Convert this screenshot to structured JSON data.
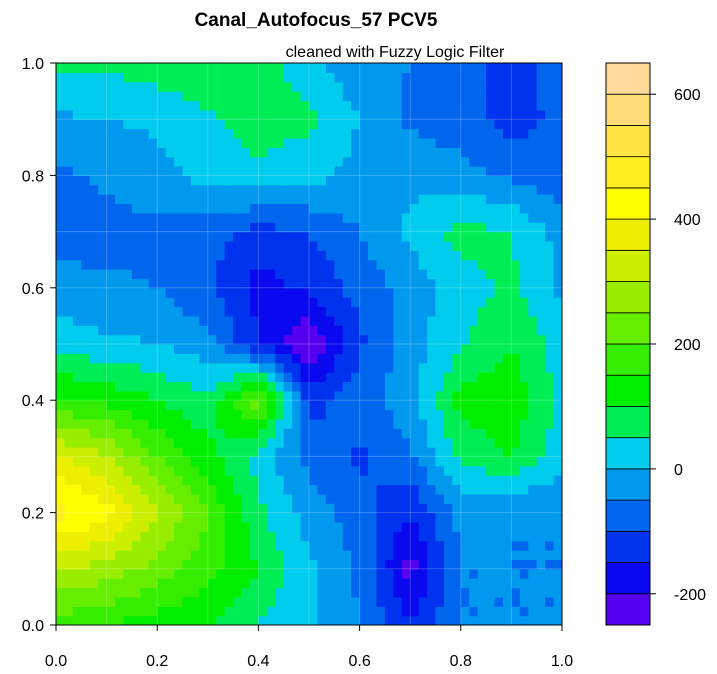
{
  "chart_data": {
    "type": "heatmap",
    "title": "Canal_Autofocus_57 PCV5",
    "subtitle": "cleaned with Fuzzy Logic Filter",
    "xlabel": "",
    "ylabel": "",
    "xlim": [
      0,
      1
    ],
    "ylim": [
      0,
      1
    ],
    "x_ticks": [
      "0.0",
      "0.2",
      "0.4",
      "0.6",
      "0.8",
      "1.0"
    ],
    "y_ticks": [
      "0.0",
      "0.2",
      "0.4",
      "0.6",
      "0.8",
      "1.0"
    ],
    "grid": true,
    "x": [
      0.0,
      0.1,
      0.2,
      0.3,
      0.4,
      0.5,
      0.6,
      0.7,
      0.8,
      0.9,
      1.0
    ],
    "y": [
      0.0,
      0.1,
      0.2,
      0.3,
      0.4,
      0.5,
      0.6,
      0.7,
      0.8,
      0.9,
      1.0
    ],
    "z": [
      [
        180,
        150,
        120,
        100,
        40,
        10,
        -50,
        -140,
        -50,
        -50,
        -50
      ],
      [
        300,
        280,
        230,
        170,
        100,
        10,
        -60,
        -220,
        -50,
        -50,
        -50
      ],
      [
        470,
        420,
        310,
        200,
        60,
        -20,
        -80,
        -150,
        -30,
        -50,
        -50
      ],
      [
        360,
        300,
        200,
        120,
        30,
        -70,
        -110,
        -60,
        60,
        100,
        20
      ],
      [
        160,
        140,
        100,
        60,
        230,
        -120,
        -70,
        -20,
        120,
        140,
        30
      ],
      [
        30,
        10,
        0,
        -30,
        -150,
        -250,
        -110,
        -20,
        40,
        100,
        20
      ],
      [
        -30,
        -40,
        -50,
        -90,
        -170,
        -140,
        -80,
        -30,
        30,
        60,
        -10
      ],
      [
        -70,
        -70,
        -60,
        -80,
        -120,
        -100,
        -50,
        10,
        70,
        50,
        -20
      ],
      [
        -60,
        -40,
        -20,
        20,
        40,
        20,
        -20,
        -10,
        -30,
        -60,
        -80
      ],
      [
        -10,
        0,
        10,
        40,
        70,
        60,
        0,
        -60,
        -80,
        -120,
        -90
      ],
      [
        70,
        60,
        80,
        90,
        80,
        20,
        -40,
        -50,
        -60,
        -140,
        -50
      ]
    ],
    "colorbar": {
      "levels": [
        -250,
        -200,
        -150,
        -100,
        -50,
        0,
        50,
        100,
        150,
        200,
        250,
        300,
        350,
        400,
        450,
        500,
        550,
        600,
        650
      ],
      "colors": [
        "#5500ee",
        "#0a08ee",
        "#0033ee",
        "#0066ee",
        "#0099ee",
        "#00ccee",
        "#00ee55",
        "#00ee00",
        "#33ee00",
        "#66ee00",
        "#99ee00",
        "#ccee00",
        "#eeee00",
        "#ffff00",
        "#ffee22",
        "#ffe444",
        "#ffdd77",
        "#ffd99a",
        "#ffe0c0"
      ],
      "tick_labels": [
        "-200",
        "0",
        "200",
        "400",
        "600"
      ],
      "tick_values": [
        -200,
        0,
        200,
        400,
        600
      ]
    }
  }
}
